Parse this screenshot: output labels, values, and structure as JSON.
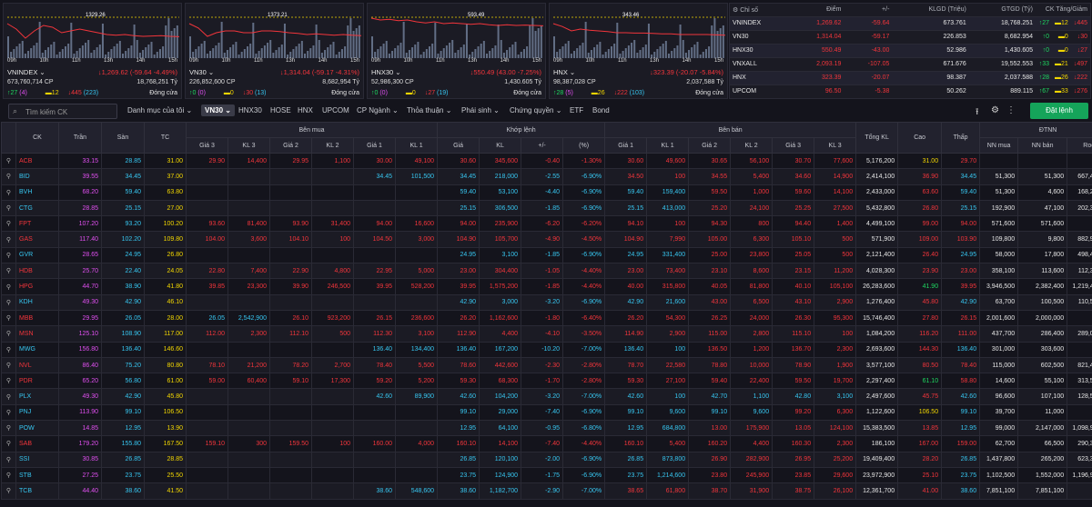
{
  "colors": {
    "up": "#1ed760",
    "down": "#f2353b",
    "ref": "#f2d600",
    "ceil": "#e04ff0",
    "floor": "#37c6f0",
    "accent": "#15a45a"
  },
  "charts": [
    {
      "name": "VNINDEX",
      "level": "1329.26",
      "ticks": [
        "09h",
        "10h",
        "11h",
        "13h",
        "14h",
        "15h"
      ],
      "value": "673,760,714 CP",
      "change": "↓1,269.62 (-59.64 -4.49%)",
      "vol": "",
      "gtgd": "18,768,251 Tỷ",
      "status": "Đóng cửa",
      "up": "↑27",
      "ceil": "(4)",
      "ref": "▬12",
      "down": "↓445",
      "floor": "(223)",
      "spark": [
        0.3,
        0.45,
        0.7,
        0.5,
        0.35,
        0.4,
        0.55,
        0.5,
        0.45,
        0.5,
        0.55,
        0.6,
        0.62,
        0.6,
        0.63,
        0.65,
        0.64,
        0.63,
        0.65,
        0.66
      ]
    },
    {
      "name": "VN30",
      "level": "1373.21",
      "ticks": [
        "09h",
        "10h",
        "11h",
        "13h",
        "14h",
        "15h"
      ],
      "value": "226,852,600 CP",
      "change": "↓1,314.04 (-59.17 -4.31%)",
      "vol": "",
      "gtgd": "8,682,954 Tỷ",
      "status": "Đóng cửa",
      "up": "↑0",
      "ceil": "(0)",
      "ref": "▬0",
      "down": "↓30",
      "floor": "(13)",
      "spark": [
        0.3,
        0.42,
        0.65,
        0.55,
        0.5,
        0.5,
        0.55,
        0.55,
        0.5,
        0.5,
        0.52,
        0.55,
        0.57,
        0.6,
        0.58,
        0.6,
        0.62,
        0.6,
        0.62,
        0.63
      ]
    },
    {
      "name": "HNX30",
      "level": "593.49",
      "ticks": [
        "09h",
        "10h",
        "11h",
        "13h",
        "14h",
        "15h"
      ],
      "value": "52,986,300 CP",
      "change": "↓550.49 (43.00 -7.25%)",
      "vol": "",
      "gtgd": "1,430.605 Tỷ",
      "status": "Đóng cửa",
      "up": "↑0",
      "ceil": "(0)",
      "ref": "▬0",
      "down": "↓27",
      "floor": "(19)",
      "spark": [
        0.15,
        0.2,
        0.18,
        0.22,
        0.2,
        0.25,
        0.28,
        0.25,
        0.3,
        0.28,
        0.3,
        0.32,
        0.3,
        0.33,
        0.35,
        0.33,
        0.35,
        0.34,
        0.35,
        0.36
      ]
    },
    {
      "name": "HNX",
      "level": "343.46",
      "ticks": [
        "09h",
        "10h",
        "11h",
        "13h",
        "14h",
        "15h"
      ],
      "value": "98,387,028 CP",
      "change": "↓323.39 (-20.07 -5.84%)",
      "vol": "",
      "gtgd": "2,037,588 Tỷ",
      "status": "Đóng cửa",
      "up": "↑28",
      "ceil": "(5)",
      "ref": "▬26",
      "down": "↓222",
      "floor": "(103)",
      "spark": [
        0.3,
        0.38,
        0.5,
        0.45,
        0.48,
        0.5,
        0.52,
        0.55,
        0.55,
        0.56,
        0.56,
        0.57,
        0.58,
        0.58,
        0.6,
        0.6,
        0.6,
        0.6,
        0.61,
        0.62
      ]
    }
  ],
  "index_table": {
    "headers": [
      "⚙ Chỉ số",
      "Điểm",
      "+/-",
      "KLGD (Triệu)",
      "GTGD (Tỷ)",
      "CK Tăng/Giảm"
    ],
    "rows": [
      [
        "VNINDEX",
        "1,269.62",
        "-59.64",
        "673.761",
        "18,768.251",
        "↑27",
        "▬12",
        "↓445"
      ],
      [
        "VN30",
        "1,314.04",
        "-59.17",
        "226.853",
        "8,682.954",
        "↑0",
        "▬0",
        "↓30"
      ],
      [
        "HNX30",
        "550.49",
        "-43.00",
        "52.986",
        "1,430.605",
        "↑0",
        "▬0",
        "↓27"
      ],
      [
        "VNXALL",
        "2,093.19",
        "-107.05",
        "671.676",
        "19,552.553",
        "↑33",
        "▬21",
        "↓497"
      ],
      [
        "HNX",
        "323.39",
        "-20.07",
        "98.387",
        "2,037.588",
        "↑28",
        "▬26",
        "↓222"
      ],
      [
        "UPCOM",
        "96.50",
        "-5.38",
        "50.262",
        "889.115",
        "↑67",
        "▬33",
        "↓276"
      ]
    ]
  },
  "toolbar": {
    "search_placeholder": "Tìm kiếm CK",
    "tabs": [
      "Danh mục của tôi ⌄",
      "VN30 ⌄",
      "HNX30",
      "HOSE",
      "HNX",
      "UPCOM",
      "CP Ngành ⌄",
      "Thỏa thuận ⌄",
      "Phái sinh ⌄",
      "Chứng quyền ⌄",
      "ETF",
      "Bond"
    ],
    "order_button": "Đặt lệnh"
  },
  "board": {
    "group_headers": [
      "CK",
      "Trần",
      "Sàn",
      "TC",
      "Bên mua",
      "Khớp lệnh",
      "Bên bán",
      "Tổng KL",
      "Cao",
      "Thấp",
      "ĐTNN"
    ],
    "sub_headers": [
      "Giá 3",
      "KL 3",
      "Giá 2",
      "KL 2",
      "Giá 1",
      "KL 1",
      "Giá",
      "KL",
      "+/-",
      "(%)",
      "Giá 1",
      "KL 1",
      "Giá 2",
      "KL 2",
      "Giá 3",
      "KL 3",
      "NN mua",
      "NN bán",
      "Room"
    ],
    "rows": [
      [
        "ACB",
        "33.15",
        "28.85",
        "31.00",
        "29.90",
        "14,400",
        "29.95",
        "1,100",
        "30.00",
        "49,100",
        "30.60",
        "345,600",
        "-0.40",
        "-1.30%",
        "30.60",
        "49,600",
        "30.65",
        "56,100",
        "30.70",
        "77,600",
        "5,176,200",
        "31.00",
        "29.70",
        "",
        "",
        ""
      ],
      [
        "BID",
        "39.55",
        "34.45",
        "37.00",
        "",
        "",
        "",
        "",
        "34.45",
        "101,500",
        "34.45",
        "218,000",
        "-2.55",
        "-6.90%",
        "34.50",
        "100",
        "34.55",
        "5,400",
        "34.60",
        "14,900",
        "2,414,100",
        "36.90",
        "34.45",
        "51,300",
        "51,300",
        "667,437,991"
      ],
      [
        "BVH",
        "68.20",
        "59.40",
        "63.80",
        "",
        "",
        "",
        "",
        "",
        "",
        "59.40",
        "53,100",
        "-4.40",
        "-6.90%",
        "59.40",
        "159,400",
        "59.50",
        "1,000",
        "59.60",
        "14,100",
        "2,433,000",
        "63.60",
        "59.40",
        "51,300",
        "4,600",
        "168,224,052"
      ],
      [
        "CTG",
        "28.85",
        "25.15",
        "27.00",
        "",
        "",
        "",
        "",
        "",
        "",
        "25.15",
        "306,500",
        "-1.85",
        "-6.90%",
        "25.15",
        "413,000",
        "25.20",
        "24,100",
        "25.25",
        "27,500",
        "5,432,800",
        "26.80",
        "25.15",
        "192,900",
        "47,100",
        "202,332,585"
      ],
      [
        "FPT",
        "107.20",
        "93.20",
        "100.20",
        "93.60",
        "81,400",
        "93.90",
        "31,400",
        "94.00",
        "16,600",
        "94.00",
        "235,900",
        "-6.20",
        "-6.20%",
        "94.10",
        "100",
        "94.30",
        "800",
        "94.40",
        "1,400",
        "4,499,100",
        "99.00",
        "94.00",
        "571,600",
        "571,600",
        "50"
      ],
      [
        "GAS",
        "117.40",
        "102.20",
        "109.80",
        "104.00",
        "3,600",
        "104.10",
        "100",
        "104.50",
        "3,000",
        "104.90",
        "105,700",
        "-4.90",
        "-4.50%",
        "104.90",
        "7,990",
        "105.00",
        "6,300",
        "105.10",
        "500",
        "571,900",
        "109.00",
        "103.90",
        "109,800",
        "9,800",
        "882,924,652"
      ],
      [
        "GVR",
        "28.65",
        "24.95",
        "26.80",
        "",
        "",
        "",
        "",
        "",
        "",
        "24.95",
        "3,100",
        "-1.85",
        "-6.90%",
        "24.95",
        "331,400",
        "25.00",
        "23,800",
        "25.05",
        "500",
        "2,121,400",
        "26.40",
        "24.95",
        "58,000",
        "17,800",
        "498,435,440"
      ],
      [
        "HDB",
        "25.70",
        "22.40",
        "24.05",
        "22.80",
        "7,400",
        "22.90",
        "4,800",
        "22.95",
        "5,000",
        "23.00",
        "304,400",
        "-1.05",
        "-4.40%",
        "23.00",
        "73,400",
        "23.10",
        "8,600",
        "23.15",
        "11,200",
        "4,028,300",
        "23.90",
        "23.00",
        "358,100",
        "113,600",
        "112,318,531"
      ],
      [
        "HPG",
        "44.70",
        "38.90",
        "41.80",
        "39.85",
        "23,300",
        "39.90",
        "246,500",
        "39.95",
        "528,200",
        "39.95",
        "1,575,200",
        "-1.85",
        "-4.40%",
        "40.00",
        "315,800",
        "40.05",
        "81,800",
        "40.10",
        "105,100",
        "26,283,600",
        "41.90",
        "39.95",
        "3,946,500",
        "2,382,400",
        "1,219,472,660"
      ],
      [
        "KDH",
        "49.30",
        "42.90",
        "46.10",
        "",
        "",
        "",
        "",
        "",
        "",
        "42.90",
        "3,000",
        "-3.20",
        "-6.90%",
        "42.90",
        "21,600",
        "43.00",
        "6,500",
        "43.10",
        "2,900",
        "1,276,400",
        "45.80",
        "42.90",
        "63,700",
        "100,500",
        "110,533,432"
      ],
      [
        "MBB",
        "29.95",
        "26.05",
        "28.00",
        "26.05",
        "2,542,900",
        "26.10",
        "923,200",
        "26.15",
        "236,600",
        "26.20",
        "1,162,600",
        "-1.80",
        "-6.40%",
        "26.20",
        "54,300",
        "26.25",
        "24,000",
        "26.30",
        "95,300",
        "15,746,400",
        "27.80",
        "26.15",
        "2,001,600",
        "2,000,000",
        "18"
      ],
      [
        "MSN",
        "125.10",
        "108.90",
        "117.00",
        "112.00",
        "2,300",
        "112.10",
        "500",
        "112.30",
        "3,100",
        "112.90",
        "4,400",
        "-4.10",
        "-3.50%",
        "114.90",
        "2,900",
        "115.00",
        "2,800",
        "115.10",
        "100",
        "1,084,200",
        "116.20",
        "111.00",
        "437,700",
        "286,400",
        "289,090,861"
      ],
      [
        "MWG",
        "156.80",
        "136.40",
        "146.60",
        "",
        "",
        "",
        "",
        "136.40",
        "134,400",
        "136.40",
        "167,200",
        "-10.20",
        "-7.00%",
        "136.40",
        "100",
        "136.50",
        "1,200",
        "136.70",
        "2,300",
        "2,693,600",
        "144.30",
        "136.40",
        "301,000",
        "303,600",
        ""
      ],
      [
        "NVL",
        "86.40",
        "75.20",
        "80.80",
        "78.10",
        "21,200",
        "78.20",
        "2,700",
        "78.40",
        "5,500",
        "78.60",
        "442,600",
        "-2.30",
        "-2.80%",
        "78.70",
        "22,580",
        "78.80",
        "10,000",
        "78.90",
        "1,900",
        "3,577,100",
        "80.50",
        "78.40",
        "115,000",
        "602,500",
        "821,403,198"
      ],
      [
        "PDR",
        "65.20",
        "56.80",
        "61.00",
        "59.00",
        "60,400",
        "59.10",
        "17,300",
        "59.20",
        "5,200",
        "59.30",
        "68,300",
        "-1.70",
        "-2.80%",
        "59.30",
        "27,100",
        "59.40",
        "22,400",
        "59.50",
        "19,700",
        "2,297,400",
        "61.10",
        "58.80",
        "14,600",
        "55,100",
        "313,556,679"
      ],
      [
        "PLX",
        "49.30",
        "42.90",
        "45.80",
        "",
        "",
        "",
        "",
        "42.60",
        "89,900",
        "42.60",
        "104,200",
        "-3.20",
        "-7.00%",
        "42.60",
        "100",
        "42.70",
        "1,100",
        "42.80",
        "3,100",
        "2,497,600",
        "45.75",
        "42.60",
        "96,600",
        "107,100",
        "128,556,054"
      ],
      [
        "PNJ",
        "113.90",
        "99.10",
        "106.50",
        "",
        "",
        "",
        "",
        "",
        "",
        "99.10",
        "29,000",
        "-7.40",
        "-6.90%",
        "99.10",
        "9,600",
        "99.10",
        "9,600",
        "99.20",
        "6,300",
        "1,122,600",
        "106.50",
        "99.10",
        "39,700",
        "11,000",
        "18"
      ],
      [
        "POW",
        "14.85",
        "12.95",
        "13.90",
        "",
        "",
        "",
        "",
        "",
        "",
        "12.95",
        "64,100",
        "-0.95",
        "-6.80%",
        "12.95",
        "684,800",
        "13.00",
        "175,900",
        "13.05",
        "124,100",
        "15,383,500",
        "13.85",
        "12.95",
        "99,000",
        "2,147,000",
        "1,098,924,007"
      ],
      [
        "SAB",
        "179.20",
        "155.80",
        "167.50",
        "159.10",
        "300",
        "159.50",
        "100",
        "160.00",
        "4,000",
        "160.10",
        "14,100",
        "-7.40",
        "-4.40%",
        "160.10",
        "5,400",
        "160.20",
        "4,400",
        "160.30",
        "2,300",
        "186,100",
        "167.00",
        "159.00",
        "62,700",
        "66,500",
        "290,379,626"
      ],
      [
        "SSI",
        "30.85",
        "26.85",
        "28.85",
        "",
        "",
        "",
        "",
        "",
        "",
        "26.85",
        "120,100",
        "-2.00",
        "-6.90%",
        "26.85",
        "873,800",
        "26.90",
        "282,900",
        "26.95",
        "25,200",
        "19,409,400",
        "28.20",
        "26.85",
        "1,437,800",
        "265,200",
        "623,359,991"
      ],
      [
        "STB",
        "27.25",
        "23.75",
        "25.50",
        "",
        "",
        "",
        "",
        "",
        "",
        "23.75",
        "124,900",
        "-1.75",
        "-6.90%",
        "23.75",
        "1,214,600",
        "23.80",
        "245,900",
        "23.85",
        "29,600",
        "23,972,900",
        "25.10",
        "23.75",
        "1,102,500",
        "1,552,000",
        "1,196,950,462"
      ],
      [
        "TCB",
        "44.40",
        "38.60",
        "41.50",
        "",
        "",
        "",
        "",
        "38.60",
        "548,600",
        "38.60",
        "1,182,700",
        "-2.90",
        "-7.00%",
        "38.65",
        "61,800",
        "38.70",
        "31,900",
        "38.75",
        "26,100",
        "12,361,700",
        "41.00",
        "38.60",
        "7,851,100",
        "7,851,100",
        "18"
      ]
    ]
  }
}
